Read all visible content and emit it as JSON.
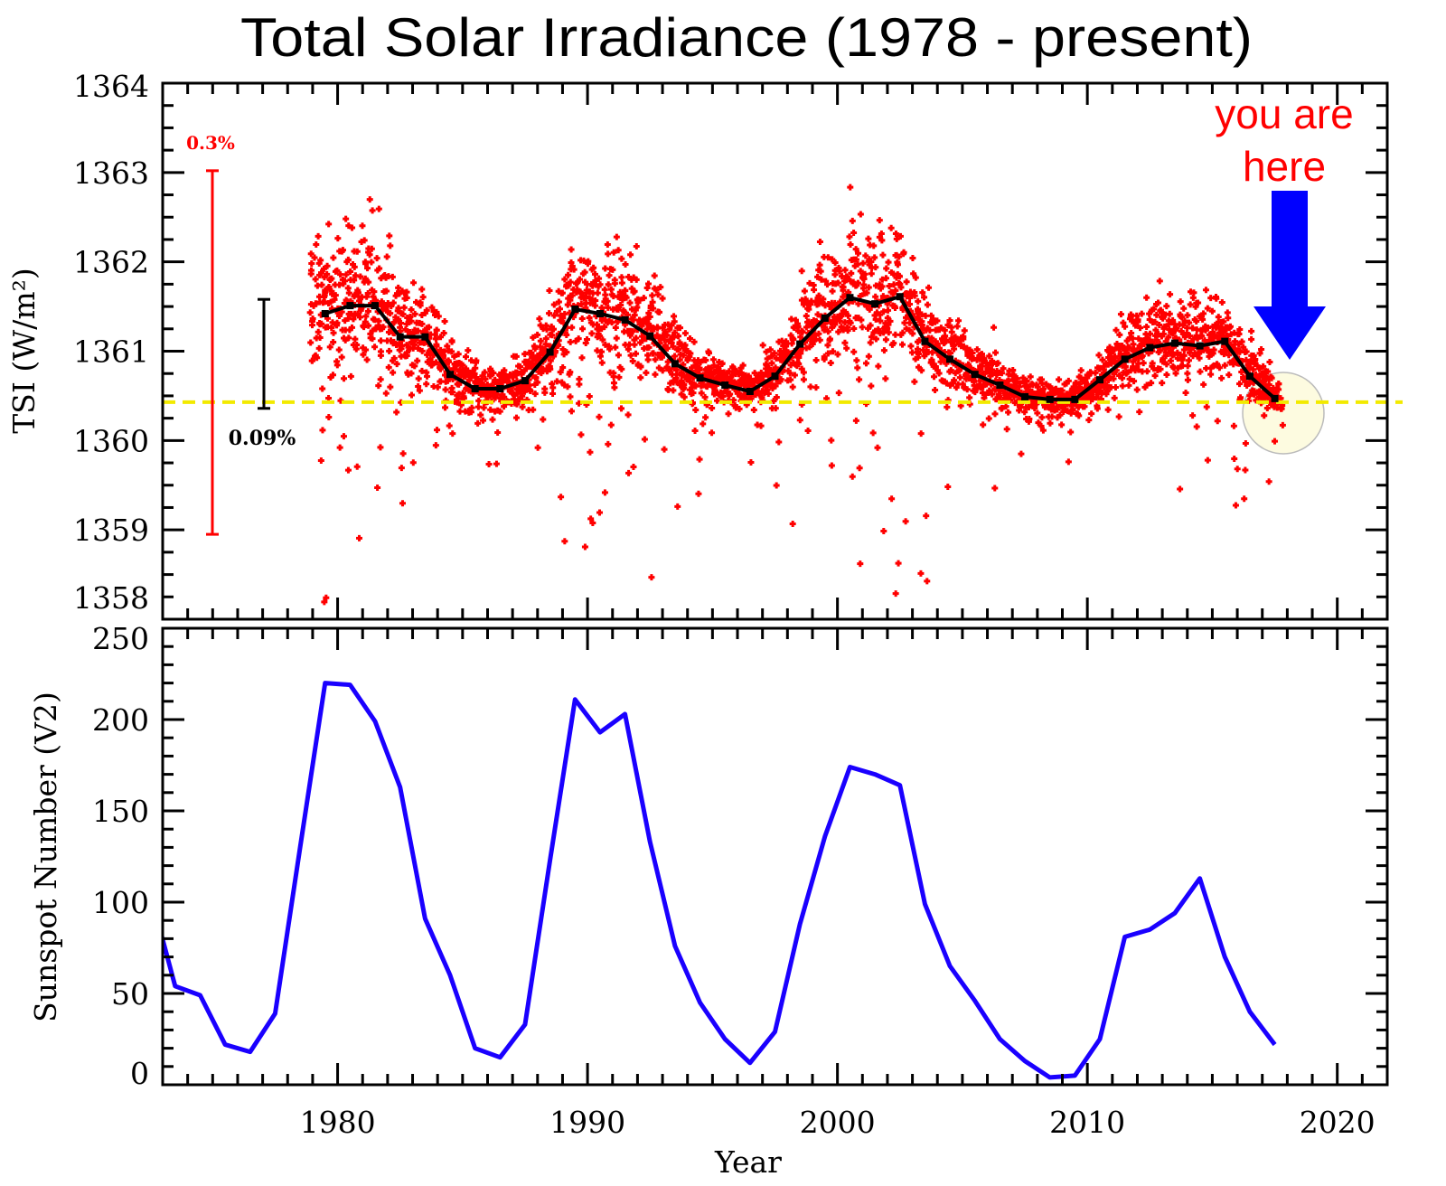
{
  "title": "Total Solar Irradiance (1978 - present)",
  "colors": {
    "daily_points": "#ff0000",
    "annual_mean": "#000000",
    "reference_line": "#f2ea00",
    "sunspot_line": "#1a00ff",
    "arrow": "#0000ff",
    "callout_text": "#ff0000",
    "highlight_circle": "#fdfbe0"
  },
  "chart_data": [
    {
      "type": "scatter",
      "panel": "top",
      "ylabel": "TSI (W/m²)",
      "xlim": [
        1973,
        2022
      ],
      "ylim": [
        1358,
        1364
      ],
      "yticks": [
        "1358",
        "1359",
        "1360",
        "1361",
        "1362",
        "1363",
        "1364"
      ],
      "grid": false,
      "daily_points_range": {
        "x": [
          1978.9,
          2017.8
        ]
      },
      "annual_mean": {
        "x": [
          1979.5,
          1980.5,
          1981.5,
          1982.5,
          1983.5,
          1984.5,
          1985.5,
          1986.5,
          1987.5,
          1988.5,
          1989.5,
          1990.5,
          1991.5,
          1992.5,
          1993.5,
          1994.5,
          1995.5,
          1996.5,
          1997.5,
          1998.5,
          1999.5,
          2000.5,
          2001.5,
          2002.5,
          2003.5,
          2004.5,
          2005.5,
          2006.5,
          2007.5,
          2008.5,
          2009.5,
          2010.5,
          2011.5,
          2012.5,
          2013.5,
          2014.5,
          2015.5,
          2016.5,
          2017.5
        ],
        "y": [
          1361.42,
          1361.51,
          1361.51,
          1361.16,
          1361.16,
          1360.74,
          1360.58,
          1360.58,
          1360.67,
          1360.99,
          1361.47,
          1361.42,
          1361.35,
          1361.17,
          1360.86,
          1360.7,
          1360.62,
          1360.55,
          1360.72,
          1361.08,
          1361.37,
          1361.6,
          1361.53,
          1361.61,
          1361.11,
          1360.91,
          1360.74,
          1360.62,
          1360.49,
          1360.46,
          1360.46,
          1360.68,
          1360.91,
          1361.04,
          1361.09,
          1361.06,
          1361.11,
          1360.72,
          1360.47
        ]
      },
      "reference_line": 1360.43,
      "range_bars": [
        {
          "label": "0.3%",
          "from": 1358.95,
          "to": 1363.02,
          "color": "#ff0000"
        },
        {
          "label": "0.09%",
          "from": 1360.36,
          "to": 1361.58,
          "color": "#000000"
        }
      ],
      "callout": {
        "line1": "you are",
        "line2": "here",
        "x": 2017.5
      }
    },
    {
      "type": "line",
      "panel": "bottom",
      "ylabel": "Sunspot Number (V2)",
      "xlabel": "Year",
      "xlim": [
        1973,
        2022
      ],
      "ylim": [
        0,
        250
      ],
      "xticks": [
        "1980",
        "1990",
        "2000",
        "2010",
        "2020"
      ],
      "yticks": [
        "0",
        "50",
        "100",
        "150",
        "200",
        "250"
      ],
      "grid": false,
      "x": [
        1972.5,
        1973.5,
        1974.5,
        1975.5,
        1976.5,
        1977.5,
        1978.5,
        1979.5,
        1980.5,
        1981.5,
        1982.5,
        1983.5,
        1984.5,
        1985.5,
        1986.5,
        1987.5,
        1988.5,
        1989.5,
        1990.5,
        1991.5,
        1992.5,
        1993.5,
        1994.5,
        1995.5,
        1996.5,
        1997.5,
        1998.5,
        1999.5,
        2000.5,
        2001.5,
        2002.5,
        2003.5,
        2004.5,
        2005.5,
        2006.5,
        2007.5,
        2008.5,
        2009.5,
        2010.5,
        2011.5,
        2012.5,
        2013.5,
        2014.5,
        2015.5,
        2016.5,
        2017.5
      ],
      "y": [
        105,
        54,
        49,
        22,
        18,
        39,
        130,
        220,
        219,
        199,
        163,
        91,
        60,
        20,
        15,
        33,
        123,
        211,
        193,
        203,
        133,
        76,
        45,
        25,
        12,
        29,
        88,
        136,
        174,
        170,
        164,
        99,
        65,
        46,
        25,
        13,
        4,
        5,
        25,
        81,
        85,
        94,
        113,
        70,
        40,
        22
      ]
    }
  ]
}
